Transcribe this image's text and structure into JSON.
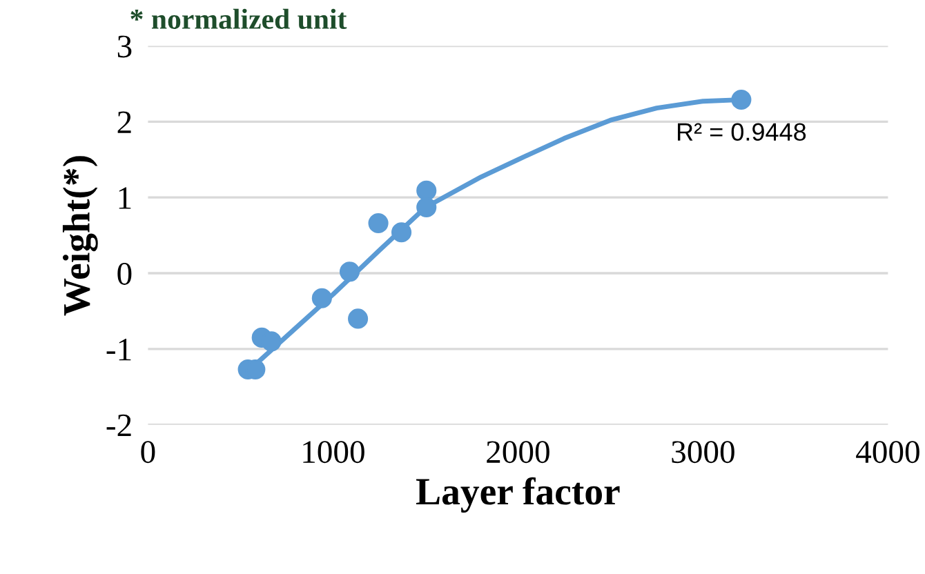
{
  "chart_data": {
    "type": "scatter",
    "xlabel": "Layer factor",
    "ylabel": "Weight(*)",
    "annotations": [
      "* normalized unit",
      "R² = 0.9448"
    ],
    "series": [
      {
        "color": "#5b9bd5",
        "marker": "circle",
        "x": [
          540,
          580,
          615,
          667,
          940,
          1090,
          1135,
          1245,
          1370,
          1505,
          1505,
          3207
        ],
        "values": [
          -1.27,
          -1.27,
          -0.85,
          -0.9,
          -0.33,
          0.02,
          -0.6,
          0.66,
          0.54,
          1.09,
          0.87,
          2.29
        ]
      },
      {
        "type": "line",
        "color": "#5b9bd5",
        "marker": "none",
        "x": [
          560,
          800,
          1000,
          1250,
          1500,
          1800,
          2000,
          2250,
          2500,
          2750,
          3000,
          3207
        ],
        "values": [
          -1.25,
          -0.72,
          -0.28,
          0.3,
          0.87,
          1.27,
          1.5,
          1.78,
          2.02,
          2.18,
          2.27,
          2.29
        ]
      }
    ],
    "xlim": [
      0,
      4000
    ],
    "xticks": [
      0,
      1000,
      2000,
      3000,
      4000
    ],
    "ylim": [
      -2,
      3
    ],
    "yticks": [
      -2,
      -1,
      0,
      1,
      2,
      3
    ],
    "grid": "y",
    "legend": false
  }
}
